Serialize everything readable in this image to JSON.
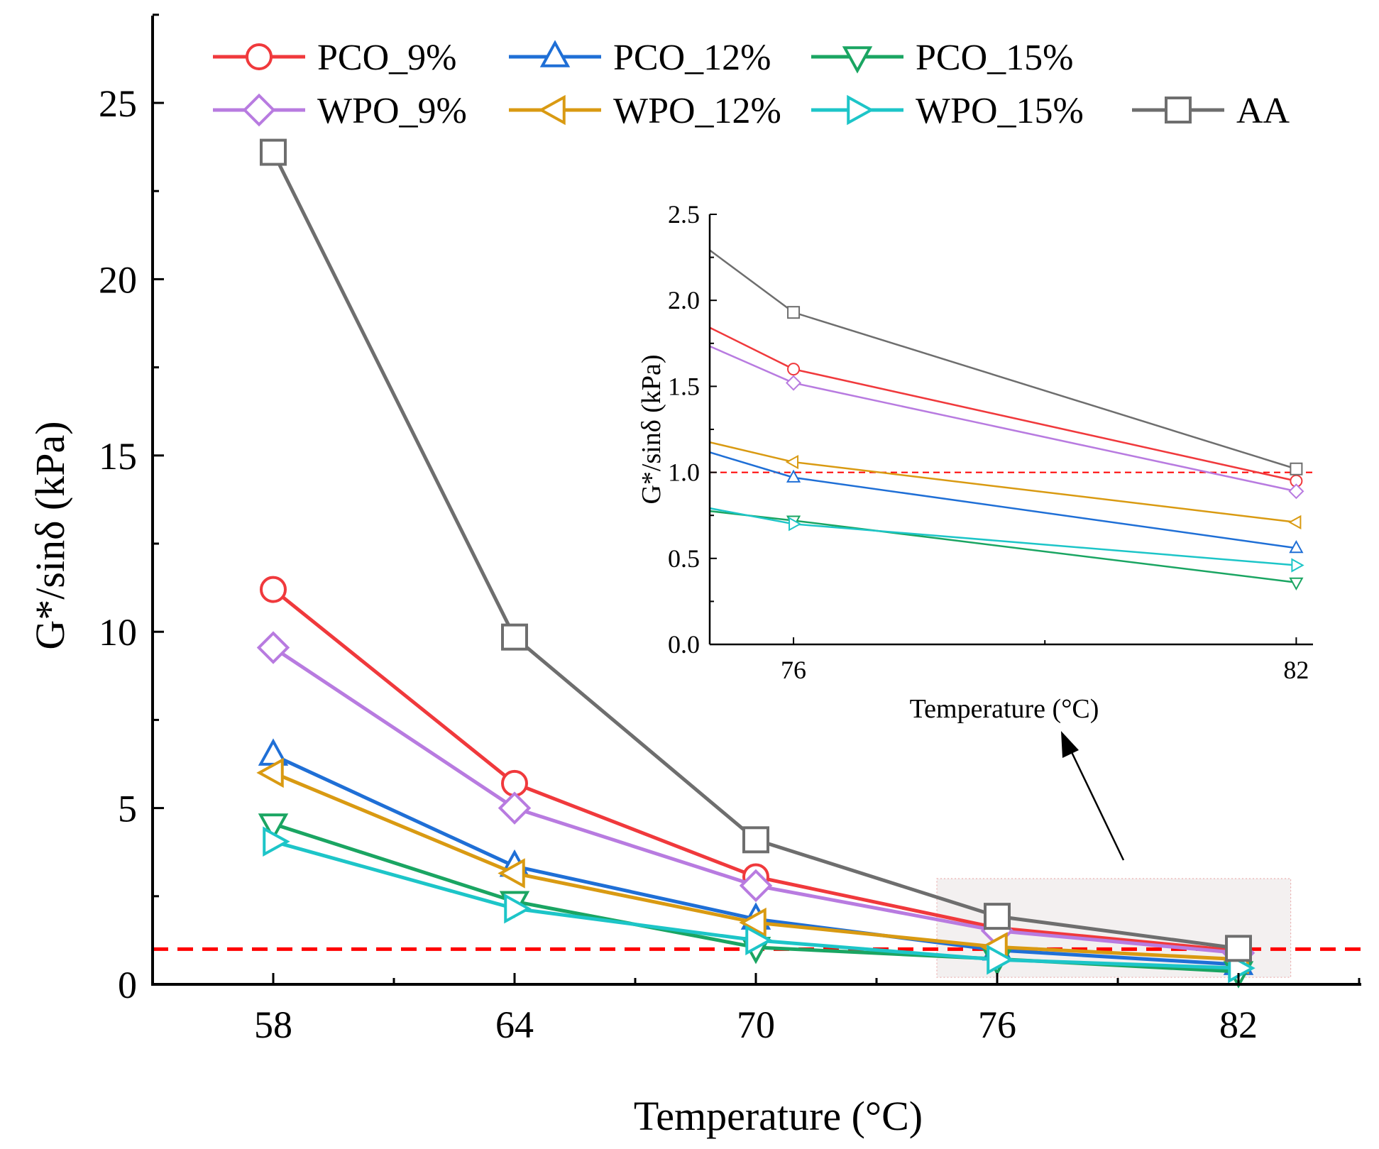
{
  "chart_data": [
    {
      "type": "line",
      "xlabel": "Temperature (°C)",
      "ylabel": "G*/sinδ (kPa)",
      "x": [
        58,
        64,
        70,
        76,
        82
      ],
      "xticks": [
        "58",
        "64",
        "70",
        "76",
        "82"
      ],
      "ylim": [
        0,
        27.5
      ],
      "yticks": [
        "0",
        "5",
        "10",
        "15",
        "20",
        "25"
      ],
      "threshold": 1.0,
      "threshold_color": "#ff0000",
      "legend_position": "top",
      "series": [
        {
          "name": "PCO_9%",
          "marker": "circle",
          "color": "#f0393c",
          "values": [
            11.2,
            5.7,
            3.05,
            1.6,
            0.95
          ]
        },
        {
          "name": "PCO_12%",
          "marker": "triangle-up",
          "color": "#1f6fd6",
          "values": [
            6.5,
            3.35,
            1.85,
            0.97,
            0.56
          ]
        },
        {
          "name": "PCO_15%",
          "marker": "triangle-down",
          "color": "#1aa562",
          "values": [
            4.55,
            2.35,
            1.05,
            0.72,
            0.36
          ]
        },
        {
          "name": "WPO_9%",
          "marker": "diamond",
          "color": "#b87be0",
          "values": [
            9.55,
            5.0,
            2.8,
            1.52,
            0.89
          ]
        },
        {
          "name": "WPO_12%",
          "marker": "triangle-left",
          "color": "#d99a12",
          "values": [
            6.0,
            3.15,
            1.75,
            1.06,
            0.71
          ]
        },
        {
          "name": "WPO_15%",
          "marker": "triangle-right",
          "color": "#1dc5c8",
          "values": [
            4.05,
            2.15,
            1.25,
            0.7,
            0.46
          ]
        },
        {
          "name": "AA",
          "marker": "square",
          "color": "#6e6e6e",
          "values": [
            23.6,
            9.85,
            4.1,
            1.93,
            1.02
          ]
        }
      ]
    },
    {
      "type": "line",
      "xlabel": "Temperature (°C)",
      "ylabel": "G*/sinδ (kPa)",
      "x": [
        76,
        82
      ],
      "xticks": [
        "76",
        "82"
      ],
      "xlim": [
        75,
        82.2
      ],
      "ylim": [
        0,
        2.5
      ],
      "yticks": [
        "0.0",
        "0.5",
        "1.0",
        "1.5",
        "2.0",
        "2.5"
      ],
      "threshold": 1.0,
      "series": [
        {
          "name": "PCO_9%",
          "values": [
            1.6,
            0.95
          ]
        },
        {
          "name": "PCO_12%",
          "values": [
            0.97,
            0.56
          ]
        },
        {
          "name": "PCO_15%",
          "values": [
            0.72,
            0.36
          ]
        },
        {
          "name": "WPO_9%",
          "values": [
            1.52,
            0.89
          ]
        },
        {
          "name": "WPO_12%",
          "values": [
            1.06,
            0.71
          ]
        },
        {
          "name": "WPO_15%",
          "values": [
            0.7,
            0.46
          ]
        },
        {
          "name": "AA",
          "values": [
            1.93,
            1.02
          ]
        }
      ]
    }
  ]
}
